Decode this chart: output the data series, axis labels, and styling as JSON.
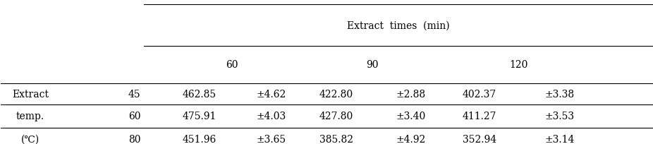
{
  "header_top": "Extract  times  (min)",
  "subheaders": [
    "60",
    "90",
    "120"
  ],
  "row_label_left": [
    "Extract",
    "temp.",
    "(℃)"
  ],
  "row_temps": [
    "45",
    "60",
    "80"
  ],
  "cell_data": [
    [
      "462.85",
      "±4.62",
      "422.80",
      "±2.88",
      "402.37",
      "±3.38"
    ],
    [
      "475.91",
      "±4.03",
      "427.80",
      "±3.40",
      "411.27",
      "±3.53"
    ],
    [
      "451.96",
      "±3.65",
      "385.82",
      "±4.92",
      "352.94",
      "±3.14"
    ]
  ],
  "fig_width": 9.26,
  "fig_height": 2.05,
  "dpi": 100,
  "font_size": 10
}
